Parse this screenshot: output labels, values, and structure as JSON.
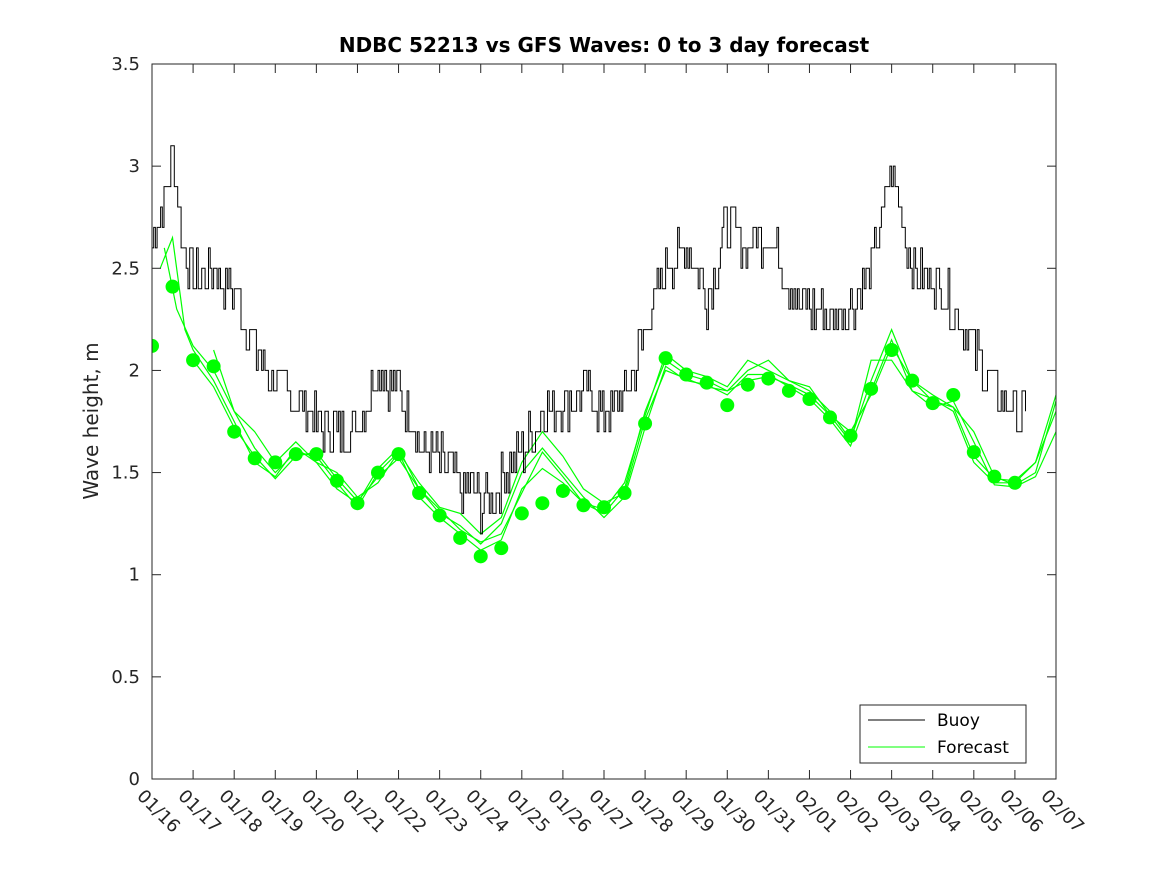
{
  "chart_data": {
    "type": "line",
    "title": "NDBC 52213 vs GFS Waves: 0 to 3 day forecast",
    "xlabel": "",
    "ylabel": "Wave height, m",
    "ylim": [
      0,
      3.5
    ],
    "yticks": [
      "0",
      "0.5",
      "1",
      "1.5",
      "2",
      "2.5",
      "3",
      "3.5"
    ],
    "xlim": [
      0,
      22
    ],
    "xtick_labels": [
      "01/16",
      "01/17",
      "01/18",
      "01/19",
      "01/20",
      "01/21",
      "01/22",
      "01/23",
      "01/24",
      "01/25",
      "01/26",
      "01/27",
      "01/28",
      "01/29",
      "01/30",
      "01/31",
      "02/01",
      "02/02",
      "02/03",
      "02/04",
      "02/05",
      "02/06",
      "02/07"
    ],
    "colors": {
      "buoy": "#000000",
      "forecast": "#00ff00",
      "axes": "#262626"
    },
    "legend": {
      "location": "bottom-right",
      "entries": [
        "Buoy",
        "Forecast"
      ]
    },
    "series": [
      {
        "name": "Buoy",
        "note": "hourly observations, noise approximated",
        "x": [
          0,
          0.25,
          0.5,
          0.75,
          1,
          1.5,
          2,
          2.5,
          3,
          3.5,
          4,
          4.5,
          5,
          5.5,
          6,
          6.5,
          7,
          7.5,
          8,
          8.5,
          9,
          9.5,
          10,
          10.5,
          11,
          11.5,
          12,
          12.5,
          13,
          13.5,
          14,
          14.5,
          15,
          15.5,
          16,
          16.5,
          17,
          17.5,
          18,
          18.5,
          19,
          19.5,
          20,
          20.5,
          21,
          21.3
        ],
        "y": [
          2.65,
          2.8,
          3.05,
          2.6,
          2.45,
          2.5,
          2.4,
          2.1,
          1.95,
          1.85,
          1.75,
          1.7,
          1.75,
          2.0,
          1.9,
          1.65,
          1.55,
          1.45,
          1.35,
          1.45,
          1.6,
          1.8,
          1.85,
          1.9,
          1.8,
          1.85,
          2.2,
          2.5,
          2.6,
          2.35,
          2.7,
          2.6,
          2.7,
          2.4,
          2.3,
          2.25,
          2.3,
          2.5,
          3.0,
          2.5,
          2.45,
          2.3,
          2.1,
          1.9,
          1.8,
          1.75
        ],
        "amplitude": 0.12
      },
      {
        "name": "Forecast",
        "note": "daily forecast markers",
        "x": [
          0,
          0.5,
          1,
          1.5,
          2,
          2.5,
          3,
          3.5,
          4,
          4.5,
          5,
          5.5,
          6,
          6.5,
          7,
          7.5,
          8,
          8.5,
          9,
          9.5,
          10,
          10.5,
          11,
          11.5,
          12,
          12.5,
          13,
          13.5,
          14,
          14.5,
          15,
          15.5,
          16,
          16.5,
          17,
          17.5,
          18,
          18.5,
          19,
          19.5,
          20,
          20.5,
          21
        ],
        "y": [
          2.12,
          2.41,
          2.05,
          2.02,
          1.7,
          1.57,
          1.55,
          1.59,
          1.59,
          1.46,
          1.35,
          1.5,
          1.59,
          1.4,
          1.29,
          1.18,
          1.09,
          1.13,
          1.3,
          1.35,
          1.41,
          1.34,
          1.33,
          1.4,
          1.74,
          2.06,
          1.98,
          1.94,
          1.83,
          1.93,
          1.96,
          1.9,
          1.86,
          1.77,
          1.68,
          1.91,
          2.1,
          1.95,
          1.84,
          1.88,
          1.6,
          1.48,
          1.45
        ]
      }
    ],
    "forecast_lines": [
      {
        "x": [
          0.2,
          0.5,
          0.8,
          1,
          1.5,
          2,
          2.5,
          3,
          3.5,
          4,
          4.5,
          5,
          5.5,
          6,
          6.5,
          7,
          7.5,
          8,
          8.5,
          9,
          9.5,
          10,
          10.5,
          11,
          11.5,
          12,
          12.5,
          13,
          13.5,
          14,
          14.5,
          15,
          15.5,
          16,
          16.5,
          17,
          17.5,
          18,
          18.5,
          19,
          19.5,
          20,
          20.5,
          21,
          21.5,
          22
        ],
        "y": [
          2.5,
          2.65,
          2.2,
          2.1,
          1.95,
          1.75,
          1.55,
          1.48,
          1.62,
          1.55,
          1.42,
          1.35,
          1.52,
          1.62,
          1.42,
          1.32,
          1.22,
          1.16,
          1.2,
          1.4,
          1.6,
          1.48,
          1.35,
          1.3,
          1.42,
          1.8,
          2.05,
          1.98,
          1.95,
          1.9,
          2.0,
          2.05,
          1.95,
          1.92,
          1.78,
          1.65,
          2.05,
          2.05,
          1.9,
          1.86,
          1.8,
          1.55,
          1.45,
          1.45,
          1.55,
          1.8
        ]
      },
      {
        "x": [
          0.3,
          0.6,
          1,
          1.5,
          2,
          2.5,
          3,
          3.5,
          4,
          4.5,
          5,
          5.5,
          6,
          6.5,
          7,
          7.5,
          8,
          8.5,
          9,
          9.5,
          10,
          10.5,
          11,
          11.5,
          12,
          12.5,
          13,
          13.5,
          14,
          14.5,
          15,
          15.5,
          16,
          16.5,
          17,
          17.5,
          18,
          18.5,
          19,
          19.5,
          20,
          20.5,
          21,
          21.5,
          22
        ],
        "y": [
          2.6,
          2.3,
          2.12,
          2.0,
          1.8,
          1.62,
          1.5,
          1.6,
          1.58,
          1.45,
          1.33,
          1.5,
          1.6,
          1.38,
          1.28,
          1.2,
          1.12,
          1.17,
          1.42,
          1.52,
          1.45,
          1.35,
          1.32,
          1.45,
          1.78,
          2.08,
          2.0,
          1.97,
          1.92,
          2.05,
          2.0,
          1.95,
          1.9,
          1.8,
          1.66,
          1.95,
          2.2,
          1.95,
          1.85,
          1.82,
          1.7,
          1.48,
          1.44,
          1.5,
          1.85
        ]
      },
      {
        "x": [
          1,
          1.5,
          2,
          2.5,
          3,
          3.5,
          4,
          4.5,
          5,
          5.5,
          6,
          6.5,
          7,
          7.5,
          8,
          8.5,
          9,
          9.5,
          10,
          10.5,
          11,
          11.5,
          12,
          12.5,
          13,
          13.5,
          14,
          14.5,
          15,
          15.5,
          16,
          16.5,
          17,
          17.5,
          18,
          18.5,
          19,
          19.5,
          20,
          20.5,
          21,
          21.5,
          22
        ],
        "y": [
          2.05,
          1.92,
          1.72,
          1.58,
          1.47,
          1.58,
          1.6,
          1.47,
          1.36,
          1.48,
          1.57,
          1.42,
          1.3,
          1.24,
          1.15,
          1.25,
          1.5,
          1.62,
          1.5,
          1.38,
          1.28,
          1.38,
          1.72,
          2.02,
          1.95,
          1.93,
          1.88,
          1.98,
          1.98,
          1.92,
          1.86,
          1.76,
          1.63,
          1.9,
          2.15,
          1.9,
          1.82,
          1.85,
          1.65,
          1.44,
          1.43,
          1.48,
          1.7
        ]
      },
      {
        "x": [
          1.5,
          2,
          2.5,
          3,
          3.5,
          4,
          4.5,
          5,
          5.5,
          6,
          6.5,
          7,
          7.5,
          8,
          8.5,
          9,
          9.5,
          10,
          10.5,
          11,
          11.5,
          12,
          12.5,
          13,
          13.5,
          14,
          14.5,
          15,
          15.5,
          16,
          16.5,
          17,
          17.5,
          18,
          18.5,
          19,
          19.5,
          20,
          20.5,
          21,
          21.5,
          22
        ],
        "y": [
          2.1,
          1.8,
          1.7,
          1.55,
          1.65,
          1.55,
          1.5,
          1.38,
          1.45,
          1.6,
          1.45,
          1.33,
          1.3,
          1.2,
          1.28,
          1.55,
          1.7,
          1.58,
          1.42,
          1.35,
          1.4,
          1.76,
          2.0,
          1.96,
          1.92,
          1.9,
          1.95,
          1.97,
          1.93,
          1.88,
          1.78,
          1.7,
          1.88,
          2.12,
          1.95,
          1.88,
          1.82,
          1.58,
          1.47,
          1.46,
          1.55,
          1.88
        ]
      }
    ]
  }
}
